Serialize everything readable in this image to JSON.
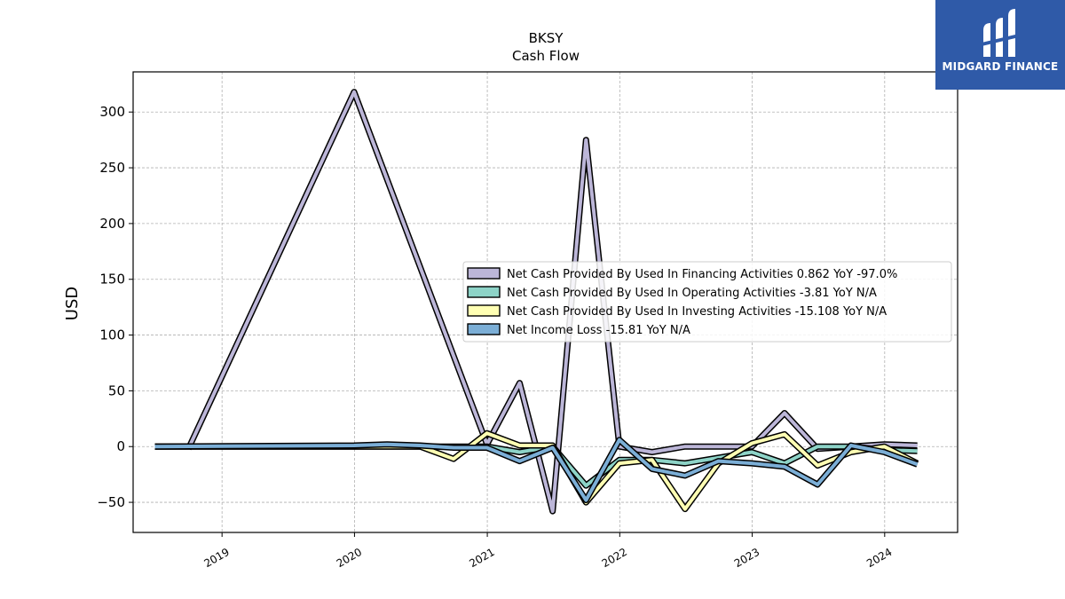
{
  "title": "BKSY",
  "subtitle": "Cash Flow",
  "logo": {
    "text": "MIDGARD FINANCE",
    "color": "#2f5aa8"
  },
  "chart_data": {
    "type": "line",
    "title": "BKSY",
    "subtitle": "Cash Flow",
    "ylabel": "USD",
    "xlabel": "",
    "ylim": [
      -77,
      336
    ],
    "xlim": [
      "2018-05-01",
      "2024-07-20"
    ],
    "grid": true,
    "legend_position": "center-right",
    "y_ticks": [
      -50,
      0,
      50,
      100,
      150,
      200,
      250,
      300
    ],
    "y_tick_labels": [
      "−50",
      "0",
      "50",
      "100",
      "150",
      "200",
      "250",
      "300"
    ],
    "x_ticks": [
      "2019-01-01",
      "2020-01-01",
      "2021-01-01",
      "2022-01-01",
      "2023-01-01",
      "2024-01-01"
    ],
    "x_tick_labels": [
      "2019",
      "2020",
      "2021",
      "2022",
      "2023",
      "2024"
    ],
    "series": [
      {
        "name": "Net Cash Provided By Used In Financing Activities  0.862 YoY -97.0%",
        "color": "#bcb6d8",
        "x": [
          "2018-09-30",
          "2019-12-31",
          "2020-12-31",
          "2021-03-31",
          "2021-06-30",
          "2021-09-30",
          "2021-12-31",
          "2022-03-31",
          "2022-06-30",
          "2022-09-30",
          "2022-12-31",
          "2023-03-31",
          "2023-06-30",
          "2023-09-30",
          "2023-12-31",
          "2024-03-31"
        ],
        "y": [
          -2,
          318,
          2,
          57,
          -58,
          275,
          0,
          -5,
          0,
          0,
          0,
          30,
          -2,
          0,
          2,
          1
        ]
      },
      {
        "name": "Net Cash Provided By Used In Operating Activities  -3.81 YoY N/A",
        "color": "#8dd3c7",
        "x": [
          "2018-06-30",
          "2019-12-31",
          "2020-06-30",
          "2020-12-31",
          "2021-03-31",
          "2021-06-30",
          "2021-09-30",
          "2021-12-31",
          "2022-03-31",
          "2022-06-30",
          "2022-09-30",
          "2022-12-31",
          "2023-03-31",
          "2023-06-30",
          "2023-09-30",
          "2023-12-31",
          "2024-03-31"
        ],
        "y": [
          0,
          0,
          0,
          0,
          -5,
          0,
          -35,
          -12,
          -12,
          -15,
          -10,
          -5,
          -15,
          0,
          0,
          -3,
          -4
        ]
      },
      {
        "name": "Net Cash Provided By Used In Investing Activities  -15.108 YoY N/A",
        "color": "#ffffb3",
        "x": [
          "2018-06-30",
          "2019-12-31",
          "2020-06-30",
          "2020-09-30",
          "2020-12-31",
          "2021-03-31",
          "2021-06-30",
          "2021-09-30",
          "2021-12-31",
          "2022-03-31",
          "2022-06-30",
          "2022-09-30",
          "2022-12-31",
          "2023-03-31",
          "2023-06-30",
          "2023-09-30",
          "2023-12-31",
          "2024-03-31"
        ],
        "y": [
          0,
          0,
          0,
          -11,
          12,
          1,
          1,
          -50,
          -15,
          -12,
          -56,
          -15,
          3,
          11,
          -17,
          -5,
          0,
          -15
        ]
      },
      {
        "name": "Net Income Loss  -15.81 YoY N/A",
        "color": "#7baed6",
        "x": [
          "2018-06-30",
          "2019-12-31",
          "2020-03-31",
          "2020-06-30",
          "2020-09-30",
          "2020-12-31",
          "2021-03-31",
          "2021-06-30",
          "2021-09-30",
          "2021-12-31",
          "2022-03-31",
          "2022-06-30",
          "2022-09-30",
          "2022-12-31",
          "2023-03-31",
          "2023-06-30",
          "2023-09-30",
          "2023-12-31",
          "2024-03-31"
        ],
        "y": [
          0,
          1,
          2,
          1,
          -1,
          -1,
          -13,
          -1,
          -48,
          6,
          -20,
          -26,
          -13,
          -15,
          -18,
          -34,
          1,
          -5,
          -16
        ]
      }
    ]
  }
}
